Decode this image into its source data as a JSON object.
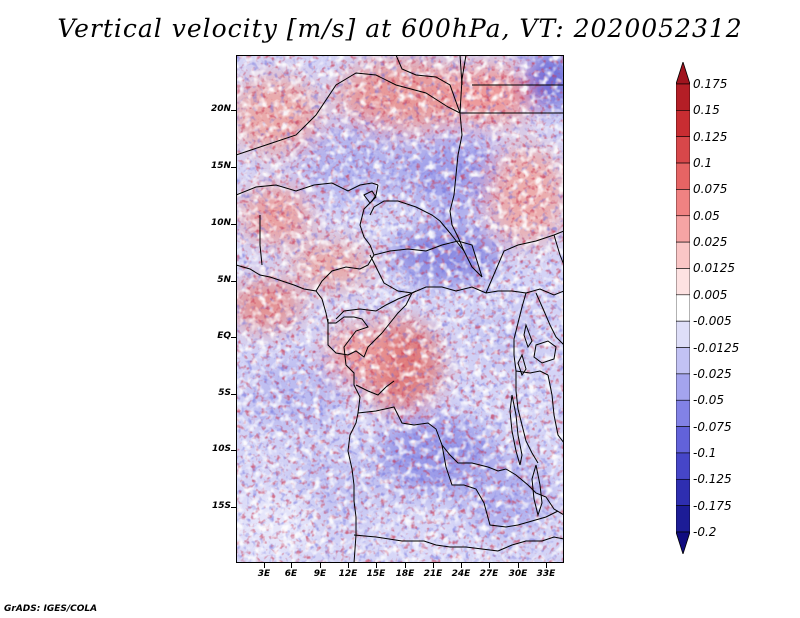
{
  "title": "Vertical velocity [m/s] at 600hPa, VT: 2020052312",
  "credit": "GrADS: IGES/COLA",
  "map": {
    "region": "Central Africa",
    "variable": "Vertical velocity",
    "units": "m/s",
    "level": "600hPa",
    "valid_time": "2020052312",
    "lat_labels": [
      "20N",
      "15N",
      "10N",
      "5N",
      "EQ",
      "5S",
      "10S",
      "15S"
    ],
    "lon_labels": [
      "3E",
      "6E",
      "9E",
      "12E",
      "15E",
      "18E",
      "21E",
      "24E",
      "27E",
      "30E",
      "33E"
    ]
  },
  "colorbar": {
    "labels": [
      "0.175",
      "0.15",
      "0.125",
      "0.1",
      "0.075",
      "0.05",
      "0.025",
      "0.0125",
      "0.005",
      "-0.005",
      "-0.0125",
      "-0.025",
      "-0.05",
      "-0.075",
      "-0.1",
      "-0.125",
      "-0.175",
      "-0.2"
    ],
    "colors": [
      "#a0141e",
      "#b41e26",
      "#c82d32",
      "#d8474a",
      "#e66464",
      "#f08282",
      "#f6a4a4",
      "#fac6c6",
      "#fde2e2",
      "#ffffff",
      "#dedef8",
      "#c2c2f4",
      "#a4a4ee",
      "#8282e6",
      "#6262da",
      "#4646c8",
      "#2e2eb0",
      "#1c1c96",
      "#100c80"
    ]
  }
}
